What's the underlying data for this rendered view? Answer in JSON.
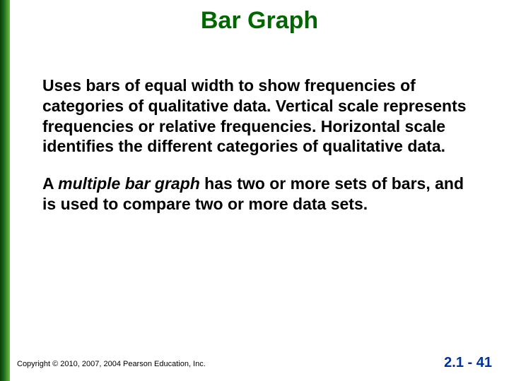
{
  "accent_bar_gradient": [
    "#0b3d0b",
    "#1d6b1d",
    "#6fbf3f"
  ],
  "title": {
    "text": "Bar Graph",
    "color": "#006600",
    "fontsize": 34
  },
  "para1": {
    "text": "Uses bars of equal width to show frequencies of categories of qualitative data. Vertical scale represents frequencies or relative frequencies. Horizontal scale identifies the different categories of qualitative data.",
    "fontsize": 23
  },
  "para2_pre": "A ",
  "para2_em": "multiple bar graph",
  "para2_post": " has two or more sets of bars, and is used to compare two or more data sets.",
  "footer": {
    "copyright": "Copyright © 2010, 2007, 2004 Pearson Education, Inc.",
    "page": "2.1 - 41",
    "page_color": "#003399"
  },
  "background_color": "#ffffff"
}
